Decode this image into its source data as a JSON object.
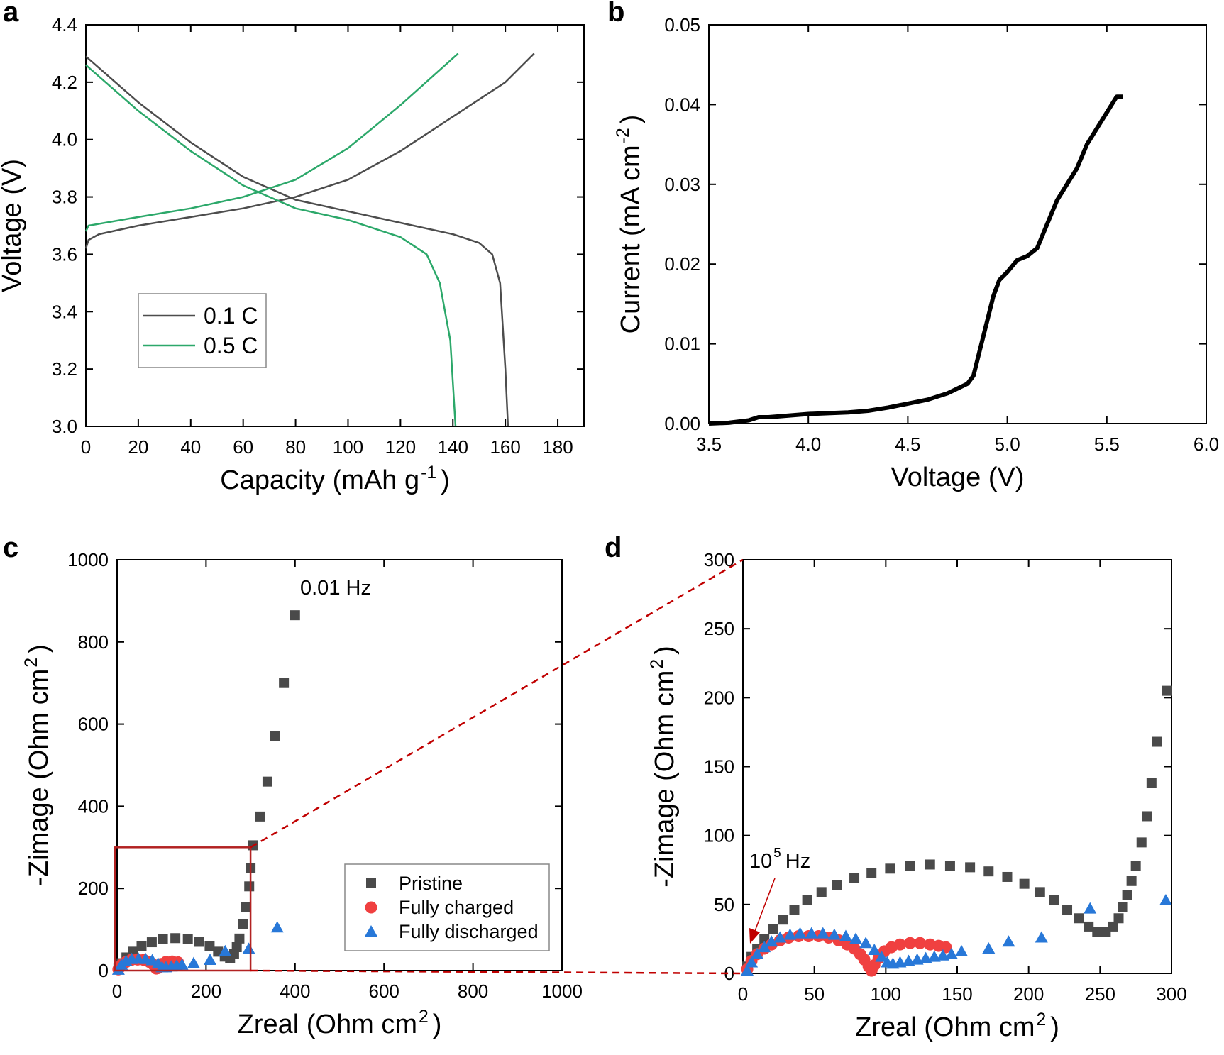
{
  "chart_data": [
    {
      "type": "line",
      "panel": "a",
      "xlabel": {
        "text": "Capacity (mAh g",
        "sup": "-1",
        "tail": ")"
      },
      "ylabel": "Voltage (V)",
      "xlim": [
        0,
        190
      ],
      "ylim": [
        3.0,
        4.4
      ],
      "xticks": [
        0,
        20,
        40,
        60,
        80,
        100,
        120,
        140,
        160,
        180
      ],
      "yticks": [
        {
          "value": 3.0,
          "label": "3.0"
        },
        3.2,
        3.4,
        3.6,
        3.8,
        {
          "value": 4.0,
          "label": "4.0"
        },
        4.2,
        4.4
      ],
      "legend": "lower left",
      "series": [
        {
          "name": "0.1 C",
          "color": "#4d4d4d",
          "x": [
            0,
            1,
            5,
            20,
            40,
            60,
            80,
            100,
            120,
            140,
            160,
            171,
            null,
            0,
            20,
            40,
            60,
            80,
            100,
            120,
            140,
            150,
            155,
            158,
            160,
            161
          ],
          "values": [
            3.62,
            3.65,
            3.67,
            3.7,
            3.73,
            3.76,
            3.8,
            3.86,
            3.96,
            4.08,
            4.2,
            4.3,
            null,
            4.29,
            4.13,
            3.99,
            3.87,
            3.79,
            3.75,
            3.71,
            3.67,
            3.64,
            3.6,
            3.5,
            3.2,
            3.0
          ]
        },
        {
          "name": "0.5 C",
          "color": "#2ca86a",
          "x": [
            0,
            1,
            20,
            40,
            60,
            80,
            100,
            120,
            142,
            null,
            0,
            20,
            40,
            60,
            80,
            100,
            120,
            130,
            135,
            139,
            141
          ],
          "values": [
            3.68,
            3.7,
            3.73,
            3.76,
            3.8,
            3.86,
            3.97,
            4.12,
            4.3,
            null,
            4.26,
            4.1,
            3.96,
            3.84,
            3.76,
            3.72,
            3.66,
            3.6,
            3.5,
            3.3,
            3.0
          ]
        }
      ]
    },
    {
      "type": "line",
      "panel": "b",
      "xlabel": "Voltage (V)",
      "ylabel": {
        "text": "Current (mA cm",
        "sup": "-2",
        "tail": ")"
      },
      "xlim": [
        3.5,
        6.0
      ],
      "ylim": [
        0,
        0.05
      ],
      "xticks": [
        3.5,
        {
          "value": 4,
          "label": "4.0"
        },
        4.5,
        {
          "value": 5,
          "label": "5.0"
        },
        5.5,
        {
          "value": 6,
          "label": "6.0"
        }
      ],
      "yticks": [
        {
          "value": 0,
          "label": "0.00"
        },
        0.01,
        0.02,
        0.03,
        0.04,
        0.05
      ],
      "color": "#000000",
      "x": [
        3.5,
        3.6,
        3.7,
        3.75,
        3.8,
        3.9,
        4.0,
        4.1,
        4.2,
        4.3,
        4.4,
        4.5,
        4.6,
        4.7,
        4.8,
        4.83,
        4.86,
        4.9,
        4.93,
        4.96,
        5.0,
        5.05,
        5.1,
        5.15,
        5.2,
        5.25,
        5.3,
        5.35,
        5.4,
        5.45,
        5.5,
        5.55,
        5.58
      ],
      "values": [
        0,
        0.0001,
        0.0004,
        0.0008,
        0.0008,
        0.001,
        0.0012,
        0.0013,
        0.0014,
        0.0016,
        0.002,
        0.0025,
        0.003,
        0.0038,
        0.005,
        0.006,
        0.009,
        0.013,
        0.016,
        0.018,
        0.019,
        0.0205,
        0.021,
        0.022,
        0.025,
        0.028,
        0.03,
        0.032,
        0.035,
        0.037,
        0.039,
        0.041,
        0.041
      ]
    },
    {
      "type": "scatter",
      "panel": "c",
      "xlabel": {
        "text": "Zreal (Ohm cm",
        "sup": "2",
        "tail": ")"
      },
      "ylabel": {
        "text": "-Zimage (Ohm cm",
        "sup": "2",
        "tail": ")"
      },
      "xlim": [
        0,
        1000
      ],
      "ylim": [
        0,
        1000
      ],
      "xticks": [
        0,
        200,
        400,
        600,
        800,
        1000
      ],
      "yticks": [
        0,
        200,
        400,
        600,
        800,
        1000
      ],
      "legend": "lower right",
      "annotation": "0.01 Hz",
      "series": [
        {
          "name": "Pristine",
          "color": "#4a4a4a",
          "marker": "square",
          "x": [
            3,
            10,
            21,
            36,
            55,
            78,
            103,
            131,
            159,
            185,
            208,
            227,
            242,
            254,
            263,
            269,
            275,
            283,
            290,
            297,
            300,
            306,
            322,
            338,
            355,
            375,
            400
          ],
          "values": [
            5,
            18,
            32,
            46,
            59,
            69,
            76,
            79,
            77,
            70,
            59,
            46,
            34,
            30,
            40,
            57,
            78,
            114,
            155,
            205,
            250,
            305,
            375,
            460,
            570,
            700,
            865
          ]
        },
        {
          "name": "Fully charged",
          "color": "#f04040",
          "marker": "circle",
          "x": [
            3,
            10,
            20,
            32,
            46,
            60,
            73,
            82,
            88,
            92,
            99,
            110,
            124,
            137
          ],
          "values": [
            3,
            14,
            21,
            26,
            27,
            26,
            21,
            14,
            5,
            6,
            16,
            21,
            22,
            20
          ]
        },
        {
          "name": "Fully discharged",
          "color": "#2878d8",
          "marker": "triangle",
          "x": [
            3,
            10,
            20,
            33,
            48,
            64,
            79,
            92,
            101,
            110,
            122,
            134,
            146,
            172,
            209,
            243,
            296,
            360
          ],
          "values": [
            2,
            14,
            23,
            28,
            29,
            28,
            25,
            17,
            8,
            8,
            10,
            12,
            14,
            18,
            26,
            47,
            53,
            105
          ]
        }
      ]
    },
    {
      "type": "scatter",
      "panel": "d",
      "xlabel": {
        "text": "Zreal (Ohm cm",
        "sup": "2",
        "tail": ")"
      },
      "ylabel": {
        "text": "-Zimage (Ohm cm",
        "sup": "2",
        "tail": ")"
      },
      "xlim": [
        0,
        300
      ],
      "ylim": [
        0,
        300
      ],
      "xticks": [
        0,
        50,
        100,
        150,
        200,
        250,
        300
      ],
      "yticks": [
        0,
        50,
        100,
        150,
        200,
        250,
        300
      ],
      "annotation": {
        "text": "10",
        "sup": "5",
        "tail": "Hz"
      },
      "series": [
        {
          "name": "Pristine",
          "color": "#4a4a4a",
          "marker": "square",
          "x": [
            3,
            6,
            10,
            15,
            21,
            28,
            36,
            45,
            55,
            66,
            78,
            90,
            103,
            117,
            131,
            145,
            159,
            172,
            185,
            197,
            208,
            218,
            227,
            235,
            242,
            248,
            254,
            259,
            263,
            266,
            269,
            272,
            275,
            279,
            283,
            286,
            290,
            297
          ],
          "values": [
            5,
            12,
            18,
            25,
            32,
            39,
            46,
            53,
            59,
            64,
            69,
            73,
            76,
            78,
            79,
            78,
            77,
            74,
            70,
            65,
            59,
            53,
            46,
            40,
            34,
            30,
            30,
            34,
            40,
            48,
            57,
            67,
            78,
            95,
            114,
            138,
            168,
            205
          ]
        },
        {
          "name": "Fully charged",
          "color": "#f04040",
          "marker": "circle",
          "x": [
            3,
            6,
            10,
            15,
            20,
            26,
            32,
            39,
            46,
            53,
            60,
            67,
            73,
            78,
            82,
            85,
            88,
            90,
            92,
            95,
            99,
            104,
            110,
            117,
            124,
            131,
            137,
            142
          ],
          "values": [
            3,
            9,
            14,
            18,
            21,
            24,
            26,
            27,
            27,
            27,
            26,
            24,
            21,
            18,
            14,
            10,
            5,
            2,
            6,
            11,
            16,
            19,
            21,
            22,
            22,
            21,
            20,
            19
          ]
        },
        {
          "name": "Fully discharged",
          "color": "#2878d8",
          "marker": "triangle",
          "x": [
            3,
            6,
            10,
            15,
            20,
            26,
            33,
            40,
            48,
            56,
            64,
            72,
            79,
            86,
            92,
            97,
            101,
            105,
            110,
            116,
            122,
            128,
            134,
            140,
            146,
            153,
            172,
            186,
            209,
            243,
            296
          ],
          "values": [
            2,
            8,
            14,
            19,
            23,
            26,
            28,
            29,
            29,
            29,
            28,
            27,
            25,
            22,
            17,
            12,
            8,
            7,
            8,
            9,
            10,
            11,
            12,
            13,
            14,
            16,
            18,
            23,
            26,
            47,
            53
          ]
        }
      ]
    }
  ]
}
